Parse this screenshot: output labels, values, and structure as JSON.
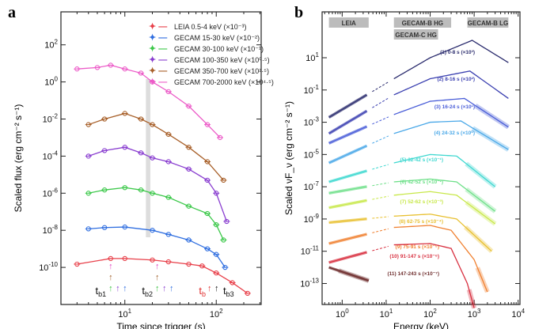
{
  "panel_labels": [
    "a",
    "b"
  ],
  "chart_data": [
    {
      "type": "scatter",
      "xscale": "log",
      "yscale": "log",
      "xlim": [
        2,
        310
      ],
      "ylim": [
        1e-12,
        6000.0
      ],
      "xlabel": "Time since trigger (s)",
      "ylabel": "Scaled flux (erg cm⁻² s⁻¹)",
      "xticks": [
        {
          "v": 10,
          "label": "10",
          "exp": "1"
        },
        {
          "v": 100,
          "label": "10",
          "exp": "2"
        }
      ],
      "yticks": [
        {
          "v": 100,
          "exp": "2"
        },
        {
          "v": 1,
          "exp": "0"
        },
        {
          "v": 0.01,
          "exp": "-2"
        },
        {
          "v": 0.0001,
          "exp": "-4"
        },
        {
          "v": 1e-06,
          "exp": "-6"
        },
        {
          "v": 1e-08,
          "exp": "-8"
        },
        {
          "v": 1e-10,
          "exp": "-10"
        }
      ],
      "legend_position": "top-right",
      "series": [
        {
          "name": "LEIA 0.5-4 keV (×10⁻³)",
          "color": "#e8404a",
          "x": [
            3,
            7,
            10,
            20,
            30,
            50,
            70,
            100,
            150,
            220
          ],
          "y": [
            1.5e-10,
            3e-10,
            3e-10,
            2.5e-10,
            2e-10,
            1.5e-10,
            1.2e-10,
            5e-11,
            1.5e-11,
            4e-12
          ]
        },
        {
          "name": "GECAM 15-30 keV (×10⁻²)",
          "color": "#2f6ee0",
          "x": [
            4,
            6,
            10,
            20,
            30,
            50,
            80,
            100,
            125
          ],
          "y": [
            1.2e-08,
            1.4e-08,
            1.5e-08,
            1e-08,
            6e-09,
            3e-09,
            1e-09,
            5e-10,
            1e-10
          ]
        },
        {
          "name": "GECAM 30-100 keV (×10⁻¹)",
          "color": "#3cc84a",
          "x": [
            4,
            6,
            10,
            15,
            20,
            30,
            50,
            80,
            100,
            120
          ],
          "y": [
            1e-06,
            1.5e-06,
            2e-06,
            1.5e-06,
            1e-06,
            6e-07,
            2e-07,
            8e-08,
            2e-08,
            3e-09
          ]
        },
        {
          "name": "GECAM 100-350 keV (×10⁰·⁵)",
          "color": "#8a3fd0",
          "x": [
            4,
            6,
            10,
            15,
            20,
            30,
            50,
            80,
            100,
            130
          ],
          "y": [
            0.0001,
            0.0002,
            0.0003,
            0.00015,
            8e-05,
            5e-05,
            2e-05,
            5e-06,
            1e-06,
            3e-08
          ]
        },
        {
          "name": "GECAM 350-700 keV (×10²·⁵)",
          "color": "#a8602a",
          "x": [
            4,
            6,
            10,
            15,
            20,
            30,
            50,
            80,
            120
          ],
          "y": [
            0.005,
            0.01,
            0.02,
            0.01,
            0.005,
            0.0015,
            0.0003,
            5e-05,
            5e-06
          ]
        },
        {
          "name": "GECAM 700-2000 keV (×10⁴·⁵)",
          "color": "#ec5cc8",
          "x": [
            3,
            5,
            7,
            10,
            15,
            20,
            30,
            50,
            80,
            110
          ],
          "y": [
            5,
            6,
            8,
            5,
            3,
            1,
            0.3,
            0.05,
            0.005,
            0.001
          ]
        }
      ],
      "shaded_interval": [
        17,
        19
      ],
      "annotations": [
        {
          "label": "t",
          "sub": "b1",
          "t": 6.5,
          "color": "#111"
        },
        {
          "label": "t",
          "sub": "b2",
          "t": 21,
          "color": "#111"
        },
        {
          "label": "t",
          "sub": "b",
          "t": 80,
          "color": "#e03030"
        },
        {
          "label": "t",
          "sub": "b3",
          "t": 92,
          "color": "#111"
        }
      ]
    },
    {
      "type": "line",
      "xscale": "log",
      "yscale": "log",
      "xlim": [
        0.35,
        11000
      ],
      "ylim": [
        5e-15,
        7000.0
      ],
      "xlabel": "Energy (keV)",
      "ylabel": "Scaled νF_ν (erg cm⁻² s⁻¹)",
      "xticks": [
        {
          "v": 1,
          "exp": "0"
        },
        {
          "v": 10,
          "exp": "1"
        },
        {
          "v": 100,
          "exp": "2"
        },
        {
          "v": 1000,
          "exp": "3"
        },
        {
          "v": 10000,
          "exp": "4"
        }
      ],
      "yticks": [
        {
          "v": 10,
          "exp": "1"
        },
        {
          "v": 0.1,
          "exp": "-1"
        },
        {
          "v": 0.001,
          "exp": "-3"
        },
        {
          "v": 1e-05,
          "exp": "-5"
        },
        {
          "v": 1e-07,
          "exp": "-7"
        },
        {
          "v": 1e-09,
          "exp": "-9"
        },
        {
          "v": 1e-11,
          "exp": "-11"
        },
        {
          "v": 1e-13,
          "exp": "-13"
        }
      ],
      "instrument_bands": [
        {
          "name": "LEIA",
          "range": [
            0.5,
            4
          ]
        },
        {
          "name": "GECAM-B HG",
          "range": [
            15,
            300
          ]
        },
        {
          "name": "GECAM-C HG",
          "range": [
            15,
            100
          ]
        },
        {
          "name": "GECAM-B LG",
          "range": [
            700,
            6000
          ]
        }
      ],
      "series": [
        {
          "name": "(1) 0-8 s (×10³)",
          "color": "#2b2c6e",
          "x": [
            0.5,
            15,
            100,
            900,
            6000
          ],
          "y": [
            0.002,
            0.5,
            10,
            120,
            5
          ]
        },
        {
          "name": "(2) 8-16 s (×10²)",
          "color": "#3a3fb0",
          "x": [
            0.5,
            15,
            100,
            800,
            6000
          ],
          "y": [
            0.0002,
            0.05,
            0.5,
            1.5,
            0.03
          ]
        },
        {
          "name": "(3) 16-24 s (×10¹)",
          "color": "#4a5ed8",
          "x": [
            0.5,
            15,
            100,
            600,
            6000
          ],
          "y": [
            5e-05,
            0.003,
            0.02,
            0.03,
            0.0005
          ]
        },
        {
          "name": "(4) 24-32 s (×10⁰)",
          "color": "#4aa8e8",
          "x": [
            0.5,
            15,
            100,
            500,
            6000
          ],
          "y": [
            3e-06,
            0.0002,
            0.001,
            0.0012,
            2e-05
          ]
        },
        {
          "name": "(5) 32-42 s (×10⁻¹)",
          "color": "#3fd8d0",
          "x": [
            0.5,
            15,
            100,
            400,
            3000
          ],
          "y": [
            2e-07,
            3e-06,
            1e-05,
            8e-06,
            1e-07
          ]
        },
        {
          "name": "(6) 42-52 s (×10⁻²)",
          "color": "#6fe08a",
          "x": [
            0.5,
            15,
            100,
            400,
            3000
          ],
          "y": [
            4e-08,
            2e-07,
            3e-07,
            2e-07,
            3e-09
          ]
        },
        {
          "name": "(7) 52-62 s (×10⁻³)",
          "color": "#c8e84a",
          "x": [
            0.5,
            15,
            100,
            400,
            3000
          ],
          "y": [
            5e-09,
            3e-08,
            5e-08,
            3e-08,
            5e-10
          ]
        },
        {
          "name": "(8) 62-75 s (×10⁻⁴)",
          "color": "#e8c030",
          "x": [
            0.5,
            15,
            100,
            400,
            2500
          ],
          "y": [
            6e-10,
            1.5e-09,
            2e-09,
            1e-09,
            1e-11
          ]
        },
        {
          "name": "(9) 75-91 s (×10⁻⁵)",
          "color": "#f08030",
          "x": [
            0.5,
            15,
            100,
            300,
            1000,
            2000
          ],
          "y": [
            3e-11,
            3e-10,
            4e-10,
            2e-10,
            3e-12,
            3e-14
          ]
        },
        {
          "name": "(10) 91-147 s (×10⁻⁶)",
          "color": "#d83040",
          "x": [
            0.5,
            15,
            100,
            300,
            700,
            1000
          ],
          "y": [
            2e-12,
            2.5e-11,
            3e-11,
            1.5e-11,
            1e-13,
            3e-15
          ]
        },
        {
          "name": "(11) 147-243 s (×10⁻⁷)",
          "color": "#703030",
          "x": [
            0.5,
            4
          ],
          "y": [
            1e-12,
            1.5e-13
          ]
        }
      ]
    }
  ]
}
